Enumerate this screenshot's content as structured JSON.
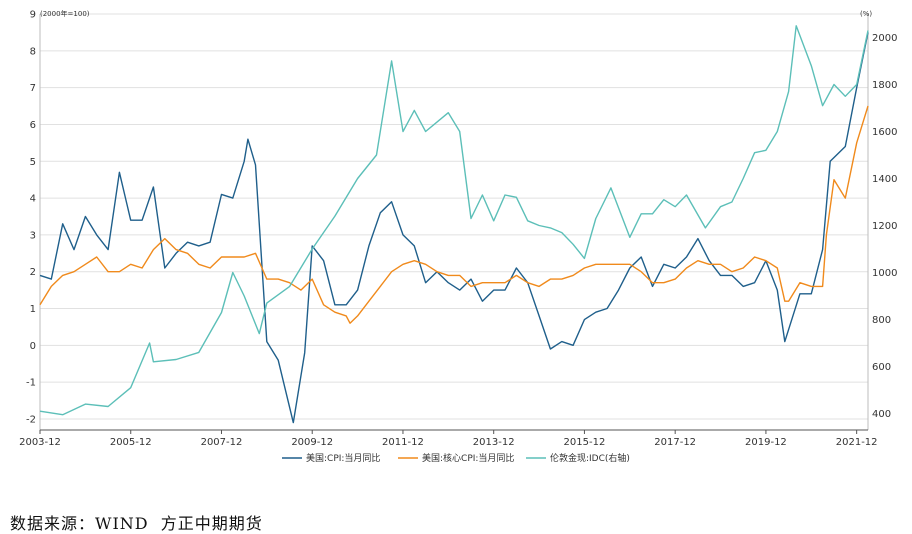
{
  "chart_data": {
    "type": "line",
    "left_axis": {
      "unit_label": "(2000年=100)",
      "ylim": [
        -2.3,
        9
      ],
      "ticks": [
        "9",
        "8",
        "7",
        "6",
        "5",
        "4",
        "3",
        "2",
        "1",
        "0",
        "-1",
        "-2"
      ]
    },
    "right_axis": {
      "unit_label": "(%)",
      "ylim": [
        330,
        2100
      ],
      "ticks": [
        "2000",
        "1800",
        "1600",
        "1400",
        "1200",
        "1000",
        "800",
        "600",
        "400"
      ]
    },
    "x_tick_labels": [
      "2003-12",
      "2005-12",
      "2007-12",
      "2009-12",
      "2011-12",
      "2013-12",
      "2015-12",
      "2017-12",
      "2019-12",
      "2021-12"
    ],
    "x_range": [
      "2003-12",
      "2022-03"
    ],
    "grid": "horizontal",
    "legend_position": "bottom",
    "series": [
      {
        "name": "美国:CPI:当月同比",
        "axis": "left",
        "color": "#1f5f8b",
        "points": [
          [
            "2003-12",
            1.9
          ],
          [
            "2004-03",
            1.8
          ],
          [
            "2004-06",
            3.3
          ],
          [
            "2004-09",
            2.6
          ],
          [
            "2004-12",
            3.5
          ],
          [
            "2005-03",
            3.0
          ],
          [
            "2005-06",
            2.6
          ],
          [
            "2005-09",
            4.7
          ],
          [
            "2005-12",
            3.4
          ],
          [
            "2006-03",
            3.4
          ],
          [
            "2006-06",
            4.3
          ],
          [
            "2006-09",
            2.1
          ],
          [
            "2006-12",
            2.5
          ],
          [
            "2007-03",
            2.8
          ],
          [
            "2007-06",
            2.7
          ],
          [
            "2007-09",
            2.8
          ],
          [
            "2007-12",
            4.1
          ],
          [
            "2008-03",
            4.0
          ],
          [
            "2008-06",
            5.0
          ],
          [
            "2008-07",
            5.6
          ],
          [
            "2008-09",
            4.9
          ],
          [
            "2008-12",
            0.1
          ],
          [
            "2009-03",
            -0.4
          ],
          [
            "2009-07",
            -2.1
          ],
          [
            "2009-10",
            -0.2
          ],
          [
            "2009-12",
            2.7
          ],
          [
            "2010-03",
            2.3
          ],
          [
            "2010-06",
            1.1
          ],
          [
            "2010-09",
            1.1
          ],
          [
            "2010-12",
            1.5
          ],
          [
            "2011-03",
            2.7
          ],
          [
            "2011-06",
            3.6
          ],
          [
            "2011-09",
            3.9
          ],
          [
            "2011-12",
            3.0
          ],
          [
            "2012-03",
            2.7
          ],
          [
            "2012-06",
            1.7
          ],
          [
            "2012-09",
            2.0
          ],
          [
            "2012-12",
            1.7
          ],
          [
            "2013-03",
            1.5
          ],
          [
            "2013-06",
            1.8
          ],
          [
            "2013-09",
            1.2
          ],
          [
            "2013-12",
            1.5
          ],
          [
            "2014-03",
            1.5
          ],
          [
            "2014-06",
            2.1
          ],
          [
            "2014-09",
            1.7
          ],
          [
            "2014-12",
            0.8
          ],
          [
            "2015-03",
            -0.1
          ],
          [
            "2015-06",
            0.1
          ],
          [
            "2015-09",
            0.0
          ],
          [
            "2015-12",
            0.7
          ],
          [
            "2016-03",
            0.9
          ],
          [
            "2016-06",
            1.0
          ],
          [
            "2016-09",
            1.5
          ],
          [
            "2016-12",
            2.1
          ],
          [
            "2017-03",
            2.4
          ],
          [
            "2017-06",
            1.6
          ],
          [
            "2017-09",
            2.2
          ],
          [
            "2017-12",
            2.1
          ],
          [
            "2018-03",
            2.4
          ],
          [
            "2018-06",
            2.9
          ],
          [
            "2018-09",
            2.3
          ],
          [
            "2018-12",
            1.9
          ],
          [
            "2019-03",
            1.9
          ],
          [
            "2019-06",
            1.6
          ],
          [
            "2019-09",
            1.7
          ],
          [
            "2019-12",
            2.3
          ],
          [
            "2020-03",
            1.5
          ],
          [
            "2020-05",
            0.1
          ],
          [
            "2020-09",
            1.4
          ],
          [
            "2020-12",
            1.4
          ],
          [
            "2021-03",
            2.6
          ],
          [
            "2021-05",
            5.0
          ],
          [
            "2021-09",
            5.4
          ],
          [
            "2021-12",
            7.0
          ],
          [
            "2022-03",
            8.5
          ]
        ]
      },
      {
        "name": "美国:核心CPI:当月同比",
        "axis": "left",
        "color": "#f08a1c",
        "points": [
          [
            "2003-12",
            1.1
          ],
          [
            "2004-03",
            1.6
          ],
          [
            "2004-06",
            1.9
          ],
          [
            "2004-09",
            2.0
          ],
          [
            "2004-12",
            2.2
          ],
          [
            "2005-03",
            2.4
          ],
          [
            "2005-06",
            2.0
          ],
          [
            "2005-09",
            2.0
          ],
          [
            "2005-12",
            2.2
          ],
          [
            "2006-03",
            2.1
          ],
          [
            "2006-06",
            2.6
          ],
          [
            "2006-09",
            2.9
          ],
          [
            "2006-12",
            2.6
          ],
          [
            "2007-03",
            2.5
          ],
          [
            "2007-06",
            2.2
          ],
          [
            "2007-09",
            2.1
          ],
          [
            "2007-12",
            2.4
          ],
          [
            "2008-03",
            2.4
          ],
          [
            "2008-06",
            2.4
          ],
          [
            "2008-09",
            2.5
          ],
          [
            "2008-12",
            1.8
          ],
          [
            "2009-03",
            1.8
          ],
          [
            "2009-06",
            1.7
          ],
          [
            "2009-09",
            1.5
          ],
          [
            "2009-12",
            1.8
          ],
          [
            "2010-03",
            1.1
          ],
          [
            "2010-06",
            0.9
          ],
          [
            "2010-09",
            0.8
          ],
          [
            "2010-10",
            0.6
          ],
          [
            "2010-12",
            0.8
          ],
          [
            "2011-03",
            1.2
          ],
          [
            "2011-06",
            1.6
          ],
          [
            "2011-09",
            2.0
          ],
          [
            "2011-12",
            2.2
          ],
          [
            "2012-03",
            2.3
          ],
          [
            "2012-06",
            2.2
          ],
          [
            "2012-09",
            2.0
          ],
          [
            "2012-12",
            1.9
          ],
          [
            "2013-03",
            1.9
          ],
          [
            "2013-06",
            1.6
          ],
          [
            "2013-09",
            1.7
          ],
          [
            "2013-12",
            1.7
          ],
          [
            "2014-03",
            1.7
          ],
          [
            "2014-06",
            1.9
          ],
          [
            "2014-09",
            1.7
          ],
          [
            "2014-12",
            1.6
          ],
          [
            "2015-03",
            1.8
          ],
          [
            "2015-06",
            1.8
          ],
          [
            "2015-09",
            1.9
          ],
          [
            "2015-12",
            2.1
          ],
          [
            "2016-03",
            2.2
          ],
          [
            "2016-06",
            2.2
          ],
          [
            "2016-09",
            2.2
          ],
          [
            "2016-12",
            2.2
          ],
          [
            "2017-03",
            2.0
          ],
          [
            "2017-06",
            1.7
          ],
          [
            "2017-09",
            1.7
          ],
          [
            "2017-12",
            1.8
          ],
          [
            "2018-03",
            2.1
          ],
          [
            "2018-06",
            2.3
          ],
          [
            "2018-09",
            2.2
          ],
          [
            "2018-12",
            2.2
          ],
          [
            "2019-03",
            2.0
          ],
          [
            "2019-06",
            2.1
          ],
          [
            "2019-09",
            2.4
          ],
          [
            "2019-12",
            2.3
          ],
          [
            "2020-03",
            2.1
          ],
          [
            "2020-05",
            1.2
          ],
          [
            "2020-06",
            1.2
          ],
          [
            "2020-09",
            1.7
          ],
          [
            "2020-12",
            1.6
          ],
          [
            "2021-03",
            1.6
          ],
          [
            "2021-04",
            3.0
          ],
          [
            "2021-06",
            4.5
          ],
          [
            "2021-09",
            4.0
          ],
          [
            "2021-12",
            5.5
          ],
          [
            "2022-03",
            6.5
          ]
        ]
      },
      {
        "name": "伦敦金现:IDC(右轴)",
        "axis": "right",
        "color": "#5cbfb8",
        "points": [
          [
            "2003-12",
            410
          ],
          [
            "2004-06",
            395
          ],
          [
            "2004-12",
            440
          ],
          [
            "2005-06",
            430
          ],
          [
            "2005-12",
            510
          ],
          [
            "2006-05",
            700
          ],
          [
            "2006-06",
            620
          ],
          [
            "2006-12",
            630
          ],
          [
            "2007-06",
            660
          ],
          [
            "2007-12",
            830
          ],
          [
            "2008-03",
            1000
          ],
          [
            "2008-06",
            900
          ],
          [
            "2008-10",
            740
          ],
          [
            "2008-12",
            870
          ],
          [
            "2009-06",
            940
          ],
          [
            "2009-12",
            1100
          ],
          [
            "2010-06",
            1240
          ],
          [
            "2010-12",
            1400
          ],
          [
            "2011-05",
            1500
          ],
          [
            "2011-09",
            1900
          ],
          [
            "2011-12",
            1600
          ],
          [
            "2012-03",
            1690
          ],
          [
            "2012-06",
            1600
          ],
          [
            "2012-12",
            1680
          ],
          [
            "2013-03",
            1600
          ],
          [
            "2013-06",
            1230
          ],
          [
            "2013-09",
            1330
          ],
          [
            "2013-12",
            1220
          ],
          [
            "2014-03",
            1330
          ],
          [
            "2014-06",
            1320
          ],
          [
            "2014-09",
            1220
          ],
          [
            "2014-12",
            1200
          ],
          [
            "2015-03",
            1190
          ],
          [
            "2015-06",
            1170
          ],
          [
            "2015-09",
            1120
          ],
          [
            "2015-12",
            1060
          ],
          [
            "2016-03",
            1230
          ],
          [
            "2016-07",
            1360
          ],
          [
            "2016-12",
            1150
          ],
          [
            "2017-03",
            1250
          ],
          [
            "2017-06",
            1250
          ],
          [
            "2017-09",
            1310
          ],
          [
            "2017-12",
            1280
          ],
          [
            "2018-03",
            1330
          ],
          [
            "2018-08",
            1190
          ],
          [
            "2018-12",
            1280
          ],
          [
            "2019-03",
            1300
          ],
          [
            "2019-06",
            1400
          ],
          [
            "2019-09",
            1510
          ],
          [
            "2019-12",
            1520
          ],
          [
            "2020-03",
            1600
          ],
          [
            "2020-06",
            1770
          ],
          [
            "2020-08",
            2050
          ],
          [
            "2020-12",
            1880
          ],
          [
            "2021-03",
            1710
          ],
          [
            "2021-06",
            1800
          ],
          [
            "2021-09",
            1750
          ],
          [
            "2021-12",
            1800
          ],
          [
            "2022-03",
            2030
          ]
        ]
      }
    ]
  },
  "source_note": "数据来源：WIND  方正中期期货"
}
